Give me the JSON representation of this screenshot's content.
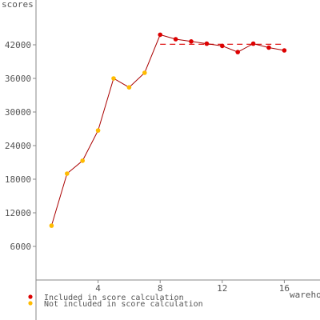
{
  "chart_data": {
    "type": "line",
    "title": "",
    "xlabel": "warehouses",
    "ylabel": "scores",
    "xlim": [
      0,
      17.5
    ],
    "ylim": [
      0,
      50000
    ],
    "x_ticks": [
      4,
      8,
      12,
      16
    ],
    "y_ticks": [
      6000,
      12000,
      18000,
      24000,
      30000,
      36000,
      42000
    ],
    "x_tick_labels": [
      "4",
      "8",
      "12",
      "16"
    ],
    "y_tick_labels": [
      "6000",
      "12000",
      "18000",
      "24000",
      "30000",
      "36000",
      "42000"
    ],
    "grid": false,
    "legend_position": "bottom-left",
    "series": [
      {
        "name": "scores",
        "x": [
          1,
          2,
          3,
          4,
          5,
          6,
          7,
          8,
          9,
          10,
          11,
          12,
          13,
          14,
          15,
          16
        ],
        "values": [
          9700,
          19000,
          21300,
          26700,
          36000,
          34400,
          37000,
          43800,
          43000,
          42600,
          42200,
          41800,
          40700,
          42200,
          41500,
          41000
        ],
        "included": [
          false,
          false,
          false,
          false,
          false,
          false,
          false,
          true,
          true,
          true,
          true,
          true,
          true,
          true,
          true,
          true
        ]
      }
    ],
    "reference_line": {
      "x_start": 8,
      "x_end": 16,
      "value": 42100,
      "style": "dashed"
    },
    "legend": [
      {
        "label": "Included in score calculation",
        "color": "#dd0000"
      },
      {
        "label": "Not included in score calculation",
        "color": "#ffbb00"
      }
    ],
    "colors": {
      "line": "#aa0000",
      "included": "#dd0000",
      "excluded": "#ffbb00",
      "axis": "#888888",
      "text": "#555555"
    }
  }
}
